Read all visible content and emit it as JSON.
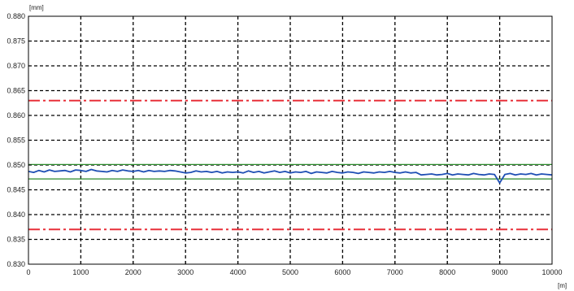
{
  "chart_data": {
    "type": "line",
    "title": "",
    "xlabel": "[m]",
    "ylabel": "[mm]",
    "xlim": [
      0,
      10000
    ],
    "ylim": [
      0.83,
      0.88
    ],
    "grid": true,
    "x_ticks": [
      0,
      1000,
      2000,
      3000,
      4000,
      5000,
      6000,
      7000,
      8000,
      9000,
      10000
    ],
    "x_tick_labels": [
      "0",
      "1000",
      "2000",
      "3000",
      "4000",
      "5000",
      "6000",
      "7000",
      "8000",
      "9000",
      "10000"
    ],
    "y_ticks": [
      0.83,
      0.835,
      0.84,
      0.845,
      0.85,
      0.855,
      0.86,
      0.865,
      0.87,
      0.875,
      0.88
    ],
    "y_tick_labels": [
      "0.830",
      "0.835",
      "0.840",
      "0.845",
      "0.850",
      "0.855",
      "0.860",
      "0.865",
      "0.870",
      "0.875",
      "0.880"
    ],
    "series": [
      {
        "kind": "measurement",
        "color": "#1f4fb4",
        "x": [
          0,
          100,
          200,
          300,
          400,
          500,
          600,
          700,
          800,
          900,
          1000,
          1100,
          1200,
          1300,
          1400,
          1500,
          1600,
          1700,
          1800,
          1900,
          2000,
          2100,
          2200,
          2300,
          2400,
          2500,
          2600,
          2700,
          2800,
          2900,
          3000,
          3100,
          3200,
          3300,
          3400,
          3500,
          3600,
          3700,
          3800,
          3900,
          4000,
          4100,
          4200,
          4300,
          4400,
          4500,
          4600,
          4700,
          4800,
          4900,
          5000,
          5100,
          5200,
          5300,
          5400,
          5500,
          5600,
          5700,
          5800,
          5900,
          6000,
          6100,
          6200,
          6300,
          6400,
          6500,
          6600,
          6700,
          6800,
          6900,
          7000,
          7100,
          7200,
          7300,
          7400,
          7500,
          7600,
          7700,
          7800,
          7900,
          8000,
          8100,
          8200,
          8300,
          8400,
          8500,
          8600,
          8700,
          8800,
          8900,
          9000,
          9100,
          9200,
          9300,
          9400,
          9500,
          9600,
          9700,
          9800,
          9900,
          10000
        ],
        "y": [
          0.8487,
          0.8485,
          0.8489,
          0.8486,
          0.849,
          0.8487,
          0.8488,
          0.8489,
          0.8486,
          0.849,
          0.8489,
          0.8487,
          0.8491,
          0.8488,
          0.8487,
          0.8486,
          0.8489,
          0.8487,
          0.849,
          0.8488,
          0.8487,
          0.8489,
          0.8486,
          0.8489,
          0.8487,
          0.8488,
          0.8487,
          0.8489,
          0.8488,
          0.8486,
          0.8484,
          0.8485,
          0.8488,
          0.8486,
          0.8487,
          0.8485,
          0.8487,
          0.8484,
          0.8486,
          0.8485,
          0.8486,
          0.8484,
          0.8488,
          0.8485,
          0.8487,
          0.8484,
          0.8486,
          0.8488,
          0.8485,
          0.8487,
          0.8484,
          0.8486,
          0.8485,
          0.8487,
          0.8483,
          0.8486,
          0.8485,
          0.8484,
          0.8487,
          0.8485,
          0.8484,
          0.8486,
          0.8485,
          0.8483,
          0.8486,
          0.8485,
          0.8484,
          0.8486,
          0.8485,
          0.8487,
          0.8485,
          0.8484,
          0.8486,
          0.8484,
          0.8485,
          0.848,
          0.8481,
          0.8482,
          0.848,
          0.8481,
          0.8483,
          0.848,
          0.8482,
          0.8481,
          0.848,
          0.8483,
          0.8481,
          0.848,
          0.8482,
          0.8481,
          0.8464,
          0.8481,
          0.8483,
          0.848,
          0.8482,
          0.8481,
          0.8483,
          0.848,
          0.8482,
          0.8481,
          0.848
        ]
      },
      {
        "kind": "upper-limit",
        "color": "#e8303a",
        "style": "dash-dot",
        "x": [
          0,
          10000
        ],
        "y": [
          0.863,
          0.863
        ]
      },
      {
        "kind": "lower-limit",
        "color": "#e8303a",
        "style": "dash-dot",
        "x": [
          0,
          10000
        ],
        "y": [
          0.837,
          0.837
        ]
      },
      {
        "kind": "upper-band",
        "color": "#2a8a2a",
        "style": "solid",
        "x": [
          0,
          10000
        ],
        "y": [
          0.8501,
          0.8501
        ]
      },
      {
        "kind": "lower-band",
        "color": "#2a8a2a",
        "style": "solid",
        "x": [
          0,
          10000
        ],
        "y": [
          0.8472,
          0.8472
        ]
      }
    ]
  }
}
